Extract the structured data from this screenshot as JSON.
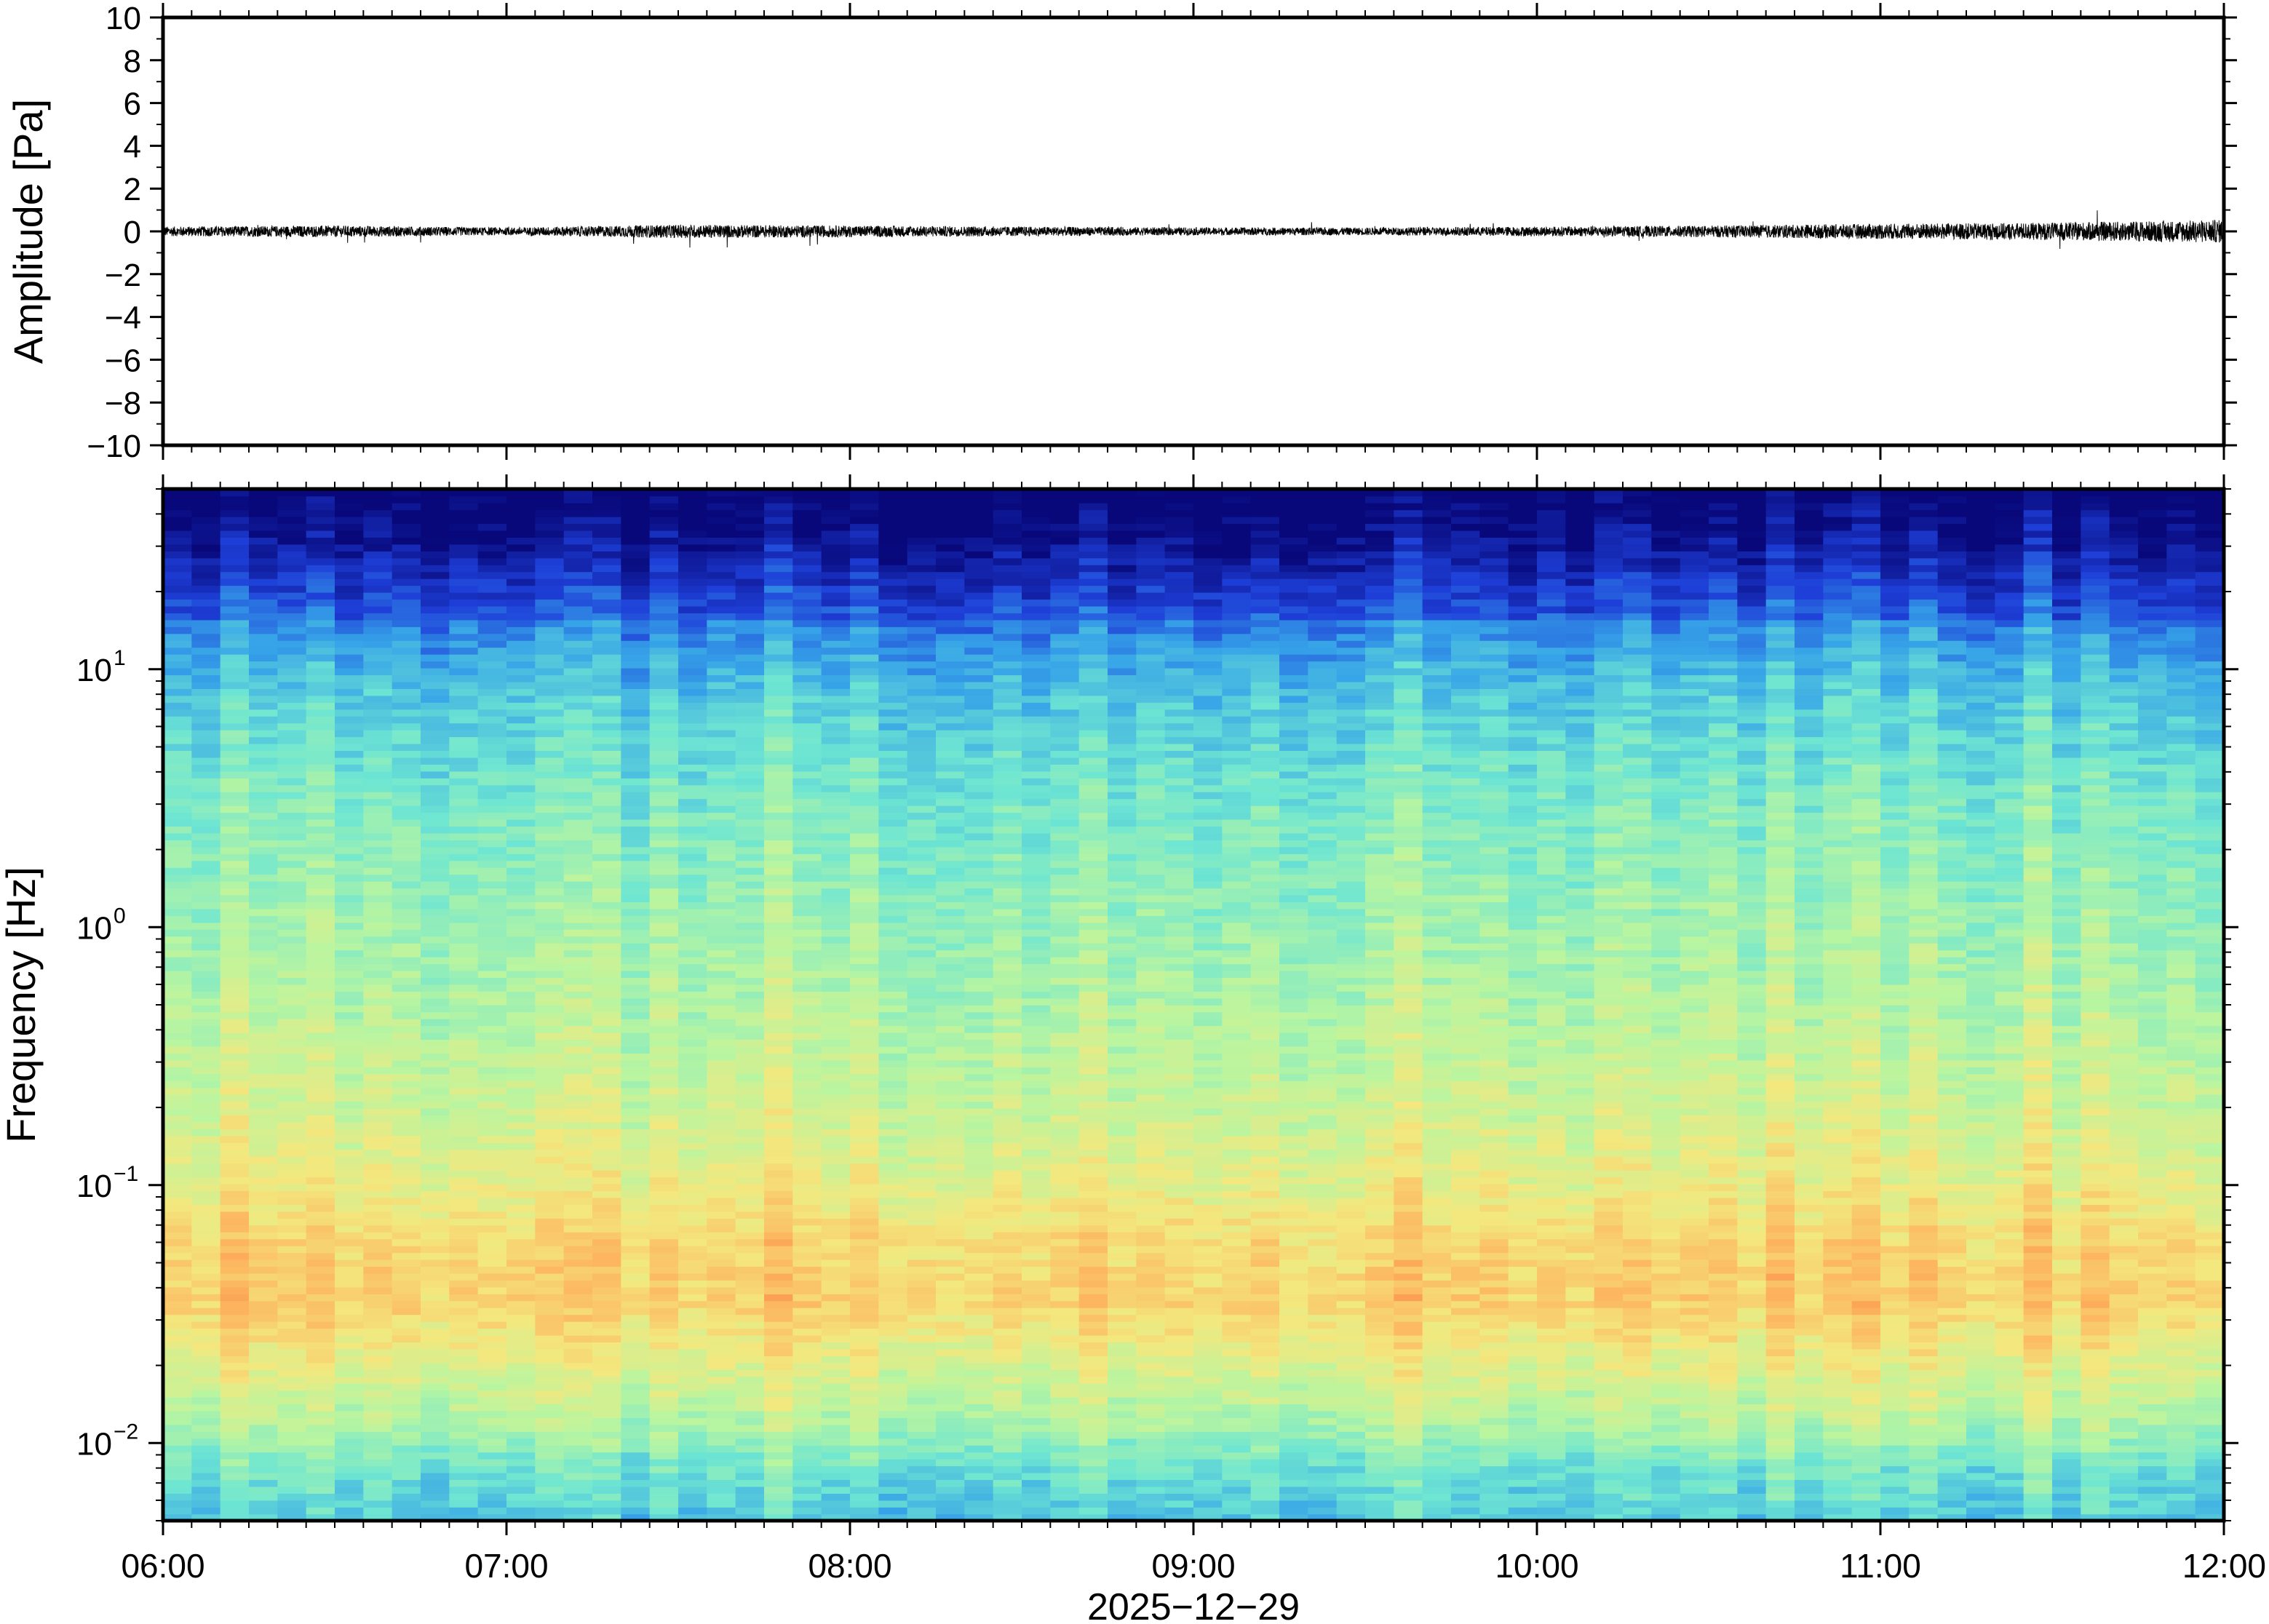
{
  "chart_data": [
    {
      "type": "line",
      "panel": "waveform",
      "ylabel": "Amplitude [Pa]",
      "ylim": [
        -10,
        10
      ],
      "yticks": [
        -10,
        -8,
        -6,
        -4,
        -2,
        0,
        2,
        4,
        6,
        8,
        10
      ],
      "ytick_labels": [
        "−10",
        "−8",
        "−6",
        "−4",
        "−2",
        "0",
        "2",
        "4",
        "6",
        "8",
        "10"
      ],
      "xlim": [
        "06:00",
        "12:00"
      ],
      "series": [
        {
          "color": "#000000",
          "envelope_x": [
            "06:00",
            "06:30",
            "07:00",
            "07:30",
            "08:00",
            "08:30",
            "09:00",
            "09:30",
            "10:00",
            "10:30",
            "11:00",
            "11:30",
            "12:00"
          ],
          "envelope_amplitude": [
            0.5,
            0.6,
            0.4,
            0.7,
            0.6,
            0.5,
            0.4,
            0.4,
            0.5,
            0.6,
            0.8,
            0.9,
            1.2
          ]
        }
      ],
      "grid": false
    },
    {
      "type": "heatmap",
      "panel": "spectrogram",
      "ylabel": "Frequency [Hz]",
      "yscale": "log",
      "ylim": [
        0.005,
        50
      ],
      "yticks": [
        0.01,
        0.1,
        1,
        10
      ],
      "ytick_labels": [
        {
          "base": "10",
          "exp": "−2"
        },
        {
          "base": "10",
          "exp": "−1"
        },
        {
          "base": "10",
          "exp": "0"
        },
        {
          "base": "10",
          "exp": "1"
        }
      ],
      "xlabel": "2025−12−29",
      "xlim": [
        "06:00",
        "12:00"
      ],
      "xticks": [
        "06:00",
        "07:00",
        "08:00",
        "09:00",
        "10:00",
        "11:00",
        "12:00"
      ],
      "colormap": [
        "#08087a",
        "#1e3fd8",
        "#36a3e8",
        "#6ee6d2",
        "#b9f5a0",
        "#f3e87e",
        "#fdb45e",
        "#f36a3a"
      ],
      "power_profile_by_frequency": [
        {
          "freq": 0.005,
          "level": 0.38
        },
        {
          "freq": 0.008,
          "level": 0.45
        },
        {
          "freq": 0.012,
          "level": 0.58
        },
        {
          "freq": 0.02,
          "level": 0.68
        },
        {
          "freq": 0.035,
          "level": 0.8
        },
        {
          "freq": 0.06,
          "level": 0.78
        },
        {
          "freq": 0.1,
          "level": 0.7
        },
        {
          "freq": 0.2,
          "level": 0.64
        },
        {
          "freq": 0.5,
          "level": 0.58
        },
        {
          "freq": 1,
          "level": 0.54
        },
        {
          "freq": 3,
          "level": 0.48
        },
        {
          "freq": 8,
          "level": 0.38
        },
        {
          "freq": 15,
          "level": 0.26
        },
        {
          "freq": 30,
          "level": 0.1
        },
        {
          "freq": 50,
          "level": 0.02
        }
      ],
      "grid": false
    }
  ]
}
